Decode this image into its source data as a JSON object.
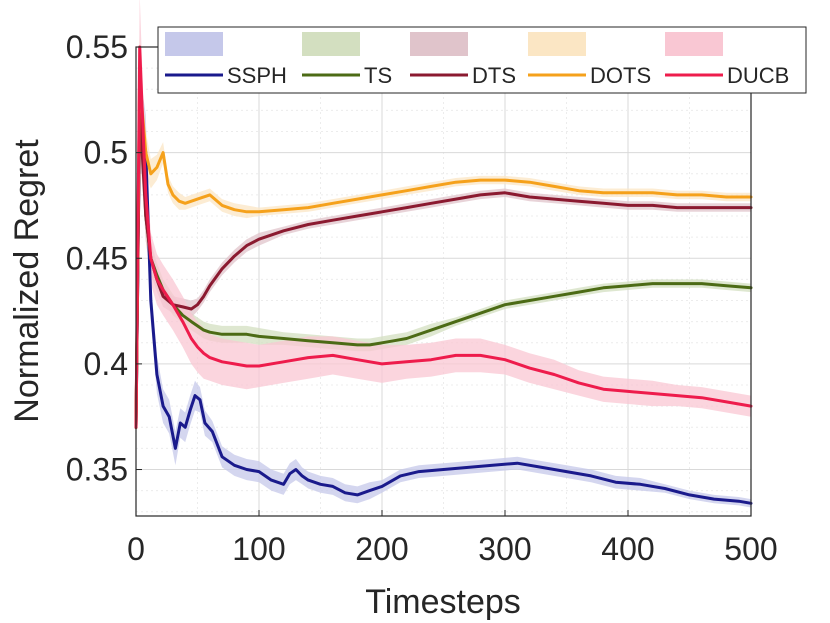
{
  "chart_data": {
    "type": "line",
    "title": "",
    "xlabel": "Timesteps",
    "ylabel": "Normalized Regret",
    "xlim": [
      0,
      500
    ],
    "ylim": [
      0.328,
      0.55
    ],
    "xticks": [
      0,
      100,
      200,
      300,
      400,
      500
    ],
    "xtick_labels": [
      "0",
      "100",
      "200",
      "300",
      "400",
      "500"
    ],
    "yticks": [
      0.35,
      0.4,
      0.45,
      0.5,
      0.55
    ],
    "ytick_labels": [
      "0.35",
      "0.4",
      "0.45",
      "0.5",
      "0.55"
    ],
    "grid": true,
    "legend_position": "top",
    "series": [
      {
        "name": "SSPH",
        "color": "#1a1a8c",
        "band_color": "#c5c8ea",
        "x": [
          0,
          3,
          5,
          8,
          12,
          17,
          22,
          27,
          32,
          36,
          40,
          44,
          48,
          52,
          56,
          62,
          70,
          80,
          90,
          100,
          110,
          120,
          125,
          130,
          135,
          140,
          150,
          160,
          170,
          180,
          190,
          200,
          215,
          230,
          250,
          270,
          290,
          310,
          330,
          350,
          370,
          390,
          410,
          430,
          450,
          470,
          490,
          500
        ],
        "y": [
          0.37,
          0.52,
          0.51,
          0.5,
          0.43,
          0.395,
          0.38,
          0.375,
          0.36,
          0.372,
          0.37,
          0.378,
          0.385,
          0.383,
          0.372,
          0.368,
          0.356,
          0.352,
          0.35,
          0.349,
          0.345,
          0.343,
          0.348,
          0.35,
          0.347,
          0.345,
          0.343,
          0.342,
          0.339,
          0.338,
          0.34,
          0.342,
          0.347,
          0.349,
          0.35,
          0.351,
          0.352,
          0.353,
          0.351,
          0.349,
          0.347,
          0.344,
          0.343,
          0.341,
          0.338,
          0.336,
          0.335,
          0.334
        ],
        "band": [
          0.002,
          0.03,
          0.02,
          0.018,
          0.01,
          0.009,
          0.008,
          0.008,
          0.008,
          0.007,
          0.007,
          0.007,
          0.007,
          0.006,
          0.006,
          0.005,
          0.005,
          0.005,
          0.005,
          0.005,
          0.005,
          0.005,
          0.005,
          0.005,
          0.004,
          0.004,
          0.004,
          0.004,
          0.004,
          0.004,
          0.004,
          0.003,
          0.003,
          0.003,
          0.003,
          0.003,
          0.003,
          0.003,
          0.003,
          0.003,
          0.003,
          0.003,
          0.003,
          0.002,
          0.002,
          0.002,
          0.002,
          0.002
        ]
      },
      {
        "name": "TS",
        "color": "#4c6b15",
        "band_color": "#d3dfc0",
        "x": [
          0,
          3,
          5,
          8,
          12,
          17,
          22,
          30,
          38,
          45,
          50,
          55,
          60,
          70,
          80,
          90,
          100,
          120,
          140,
          160,
          180,
          190,
          200,
          210,
          220,
          240,
          260,
          280,
          300,
          320,
          340,
          360,
          380,
          400,
          420,
          440,
          460,
          480,
          500
        ],
        "y": [
          0.37,
          0.53,
          0.51,
          0.47,
          0.45,
          0.442,
          0.435,
          0.428,
          0.423,
          0.42,
          0.418,
          0.416,
          0.415,
          0.414,
          0.414,
          0.414,
          0.413,
          0.412,
          0.411,
          0.41,
          0.409,
          0.409,
          0.41,
          0.411,
          0.412,
          0.416,
          0.42,
          0.424,
          0.428,
          0.43,
          0.432,
          0.434,
          0.436,
          0.437,
          0.438,
          0.438,
          0.438,
          0.437,
          0.436
        ],
        "band": [
          0.003,
          0.02,
          0.015,
          0.012,
          0.008,
          0.006,
          0.005,
          0.005,
          0.004,
          0.004,
          0.004,
          0.004,
          0.004,
          0.004,
          0.004,
          0.004,
          0.004,
          0.003,
          0.003,
          0.003,
          0.003,
          0.003,
          0.003,
          0.003,
          0.003,
          0.003,
          0.002,
          0.002,
          0.002,
          0.002,
          0.002,
          0.002,
          0.002,
          0.002,
          0.002,
          0.002,
          0.002,
          0.002,
          0.002
        ]
      },
      {
        "name": "DTS",
        "color": "#8b1a30",
        "band_color": "#e0c4cb",
        "x": [
          0,
          3,
          5,
          8,
          12,
          17,
          22,
          30,
          38,
          45,
          50,
          55,
          60,
          70,
          80,
          90,
          100,
          120,
          140,
          160,
          180,
          200,
          220,
          240,
          260,
          280,
          300,
          320,
          340,
          360,
          380,
          400,
          420,
          440,
          460,
          480,
          500
        ],
        "y": [
          0.37,
          0.52,
          0.5,
          0.47,
          0.45,
          0.44,
          0.432,
          0.428,
          0.427,
          0.426,
          0.428,
          0.432,
          0.437,
          0.445,
          0.451,
          0.456,
          0.459,
          0.463,
          0.466,
          0.468,
          0.47,
          0.472,
          0.474,
          0.476,
          0.478,
          0.48,
          0.481,
          0.479,
          0.478,
          0.477,
          0.476,
          0.475,
          0.475,
          0.474,
          0.474,
          0.474,
          0.474
        ],
        "band": [
          0.003,
          0.02,
          0.015,
          0.012,
          0.008,
          0.006,
          0.005,
          0.004,
          0.004,
          0.004,
          0.003,
          0.003,
          0.003,
          0.003,
          0.003,
          0.003,
          0.003,
          0.002,
          0.002,
          0.002,
          0.002,
          0.002,
          0.002,
          0.002,
          0.002,
          0.002,
          0.002,
          0.002,
          0.002,
          0.002,
          0.002,
          0.002,
          0.002,
          0.002,
          0.002,
          0.002,
          0.002
        ]
      },
      {
        "name": "DOTS",
        "color": "#f5a11b",
        "band_color": "#fbe6c4",
        "x": [
          0,
          3,
          5,
          8,
          12,
          17,
          22,
          26,
          30,
          35,
          40,
          50,
          60,
          70,
          80,
          90,
          100,
          120,
          140,
          160,
          180,
          200,
          220,
          240,
          260,
          280,
          300,
          320,
          340,
          360,
          380,
          400,
          420,
          440,
          460,
          480,
          500
        ],
        "y": [
          0.37,
          0.54,
          0.52,
          0.5,
          0.49,
          0.493,
          0.5,
          0.485,
          0.48,
          0.477,
          0.476,
          0.478,
          0.48,
          0.475,
          0.473,
          0.472,
          0.472,
          0.473,
          0.474,
          0.476,
          0.478,
          0.48,
          0.482,
          0.484,
          0.486,
          0.487,
          0.487,
          0.486,
          0.484,
          0.482,
          0.481,
          0.481,
          0.481,
          0.48,
          0.48,
          0.479,
          0.479
        ],
        "band": [
          0.003,
          0.015,
          0.012,
          0.01,
          0.007,
          0.006,
          0.005,
          0.004,
          0.004,
          0.004,
          0.003,
          0.003,
          0.003,
          0.003,
          0.003,
          0.003,
          0.002,
          0.002,
          0.002,
          0.002,
          0.002,
          0.002,
          0.002,
          0.002,
          0.002,
          0.002,
          0.002,
          0.002,
          0.002,
          0.002,
          0.002,
          0.002,
          0.002,
          0.002,
          0.002,
          0.002,
          0.002
        ]
      },
      {
        "name": "DUCB",
        "color": "#ee1c4c",
        "band_color": "#f9c7d3",
        "x": [
          0,
          3,
          5,
          8,
          12,
          17,
          22,
          30,
          38,
          45,
          50,
          55,
          60,
          70,
          80,
          90,
          100,
          120,
          140,
          160,
          180,
          200,
          220,
          240,
          260,
          280,
          300,
          320,
          340,
          360,
          380,
          400,
          420,
          440,
          460,
          480,
          500
        ],
        "y": [
          0.37,
          0.55,
          0.52,
          0.48,
          0.45,
          0.44,
          0.435,
          0.428,
          0.42,
          0.412,
          0.408,
          0.405,
          0.403,
          0.401,
          0.4,
          0.399,
          0.399,
          0.401,
          0.403,
          0.404,
          0.402,
          0.4,
          0.401,
          0.402,
          0.404,
          0.404,
          0.402,
          0.398,
          0.395,
          0.391,
          0.388,
          0.387,
          0.386,
          0.385,
          0.384,
          0.382,
          0.38
        ],
        "band": [
          0.003,
          0.025,
          0.02,
          0.015,
          0.012,
          0.012,
          0.012,
          0.012,
          0.012,
          0.012,
          0.012,
          0.012,
          0.011,
          0.011,
          0.011,
          0.011,
          0.01,
          0.01,
          0.01,
          0.009,
          0.009,
          0.009,
          0.008,
          0.008,
          0.008,
          0.008,
          0.007,
          0.007,
          0.007,
          0.006,
          0.006,
          0.006,
          0.006,
          0.005,
          0.005,
          0.005,
          0.005
        ]
      }
    ]
  }
}
